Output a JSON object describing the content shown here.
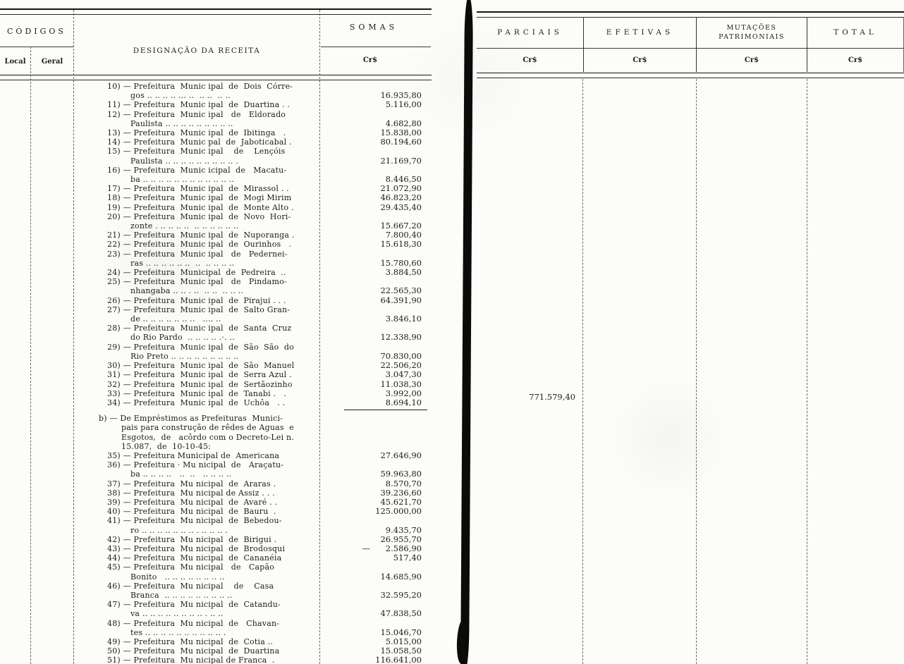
{
  "left_page": {
    "header": {
      "codigos": "CÓDIGOS",
      "local": "Local",
      "geral": "Geral",
      "designacao": "DESIGNAÇÃO DA RECEITA",
      "somas": "SOMAS",
      "currency": "Cr$"
    },
    "entries": [
      {
        "num": "10)",
        "lines": [
          "Prefeitura  Munic ipal  de  Dois  Córre-",
          "gos .. .. .. .. ... ..  .. ..  .. .."
        ],
        "amount": "16.935,80"
      },
      {
        "num": "11)",
        "lines": [
          "Prefeitura  Munic ipal  de  Duartina . ."
        ],
        "amount": "5.116,00"
      },
      {
        "num": "12)",
        "lines": [
          "Prefeitura  Munic ipal   de   Eldorado",
          "Paulista .. .. .. .. .. .. .. .. .."
        ],
        "amount": "4.682,80"
      },
      {
        "num": "13)",
        "lines": [
          "Prefeitura  Munic ipal  de  Ibitinga   ."
        ],
        "amount": "15.838,00"
      },
      {
        "num": "14)",
        "lines": [
          "Prefeitura  Munic pal  de  Jaboticabal ."
        ],
        "amount": "80.194,60"
      },
      {
        "num": "15)",
        "lines": [
          "Prefeitura  Munic ipal    de    Lençóis",
          "Paulista .. .. .. .. .. .. .. .. .. ."
        ],
        "amount": "21.169,70"
      },
      {
        "num": "16)",
        "lines": [
          "Prefeitura  Munic icipal  de   Macatu-",
          "ba .. .. .. .. .. .. .. .. .. .. .. .."
        ],
        "amount": "8.446,50"
      },
      {
        "num": "17)",
        "lines": [
          "Prefeitura  Munic ipal  de  Mirassol . ."
        ],
        "amount": "21.072,90"
      },
      {
        "num": "18)",
        "lines": [
          "Prefeitura  Munic ipal  de  Mogi Mirim"
        ],
        "amount": "46.823,20"
      },
      {
        "num": "19)",
        "lines": [
          "Prefeitura  Munic ipal  de  Monte Alto ."
        ],
        "amount": "29.435,40"
      },
      {
        "num": "20)",
        "lines": [
          "Prefeitura  Munic ipal  de  Novo  Hori-",
          "zonte . .. .. .. ..  .. .. .. .. .. .."
        ],
        "amount": "15.667,20"
      },
      {
        "num": "21)",
        "lines": [
          "Prefeitura  Munic ipal  de  Nuporanga ."
        ],
        "amount": "7.800,40"
      },
      {
        "num": "22)",
        "lines": [
          "Prefeitura  Munic ipal  de  Ourinhos   ."
        ],
        "amount": "15.618,30"
      },
      {
        "num": "23)",
        "lines": [
          "Prefeitura  Munic ipal   de   Pedernei-",
          "ras .. .. .. .. .. ..  ..  .. .. .. .."
        ],
        "amount": "15.780,60"
      },
      {
        "num": "24)",
        "lines": [
          "Prefeitura  Municipal  de  Pedreira  .."
        ],
        "amount": "3.884,50"
      },
      {
        "num": "25)",
        "lines": [
          "Prefeitura  Munic ipal   de   Pindamo-",
          "nhangaba .. .. . ..  .. ..  .. .. .."
        ],
        "amount": "22.565,30"
      },
      {
        "num": "26)",
        "lines": [
          "Prefeitura  Munic ipal  de  Pirajui . . ."
        ],
        "amount": "64.391,90"
      },
      {
        "num": "27)",
        "lines": [
          "Prefeitura  Munic ipal  de  Salto Gran-",
          "de .. .. .. .. .. .. ..   .... .."
        ],
        "amount": "3.846,10"
      },
      {
        "num": "28)",
        "lines": [
          "Prefeitura  Munic ipal  de  Santa  Cruz",
          "do Rio Pardo  .. .. .. .. .·. .."
        ],
        "amount": "12.338,90"
      },
      {
        "num": "29)",
        "lines": [
          "Prefeitura  Munic ipal  de  São  São  do",
          "Rio Preto .. .. .. .. .. .. .. .. .."
        ],
        "amount": "70.830,00"
      },
      {
        "num": "30)",
        "lines": [
          "Prefeitura  Munic ipal  de  São  Manuel"
        ],
        "amount": "22.506,20"
      },
      {
        "num": "31)",
        "lines": [
          "Prefeitura  Munic ipal  de  Serra Azul ."
        ],
        "amount": "3.047,30"
      },
      {
        "num": "32)",
        "lines": [
          "Prefeitura  Munic ipal  de  Sertãozinho"
        ],
        "amount": "11.038,30"
      },
      {
        "num": "33)",
        "lines": [
          "Prefeitura  Munic ipal  de  Tanabi .   ."
        ],
        "amount": "3.992,00"
      },
      {
        "num": "34)",
        "lines": [
          "Prefeitura  Munic ipal  de  Uchôa   . ."
        ],
        "amount": "8.694,10",
        "rule_after": true
      },
      {
        "num": "b)",
        "section": true,
        "lines": [
          "De Empréstimos as Prefeituras  Munici-",
          "pais para construção de rêdes de Aguas  e",
          "Esgotos,  de   acôrdo com o Decreto-Lei n.",
          "15.087,  de  10-10-45:"
        ],
        "amount": ""
      },
      {
        "num": "35)",
        "lines": [
          "Prefeitura Municipal de  Americana"
        ],
        "amount": "27.646,90"
      },
      {
        "num": "36)",
        "lines": [
          "Prefeitura · Mu nicipal  de   Araçatu-",
          "ba .. .. .. ..   ..  ..   .. .. .. .."
        ],
        "amount": "59.963,80"
      },
      {
        "num": "37)",
        "lines": [
          "Prefeitura  Mu nicipal  de  Araras ."
        ],
        "amount": "8.570,70"
      },
      {
        "num": "38)",
        "lines": [
          "Prefeitura  Mu nicipal de Assiz . . ."
        ],
        "amount": "39.236,60"
      },
      {
        "num": "39)",
        "lines": [
          "Prefeitura  Mu nicipal  de  Avaré . ."
        ],
        "amount": "45.621,70"
      },
      {
        "num": "40)",
        "lines": [
          "Prefeitura  Mu nicipal  de  Bauru  ."
        ],
        "amount": "125.000,00"
      },
      {
        "num": "41)",
        "lines": [
          "Prefeitura  Mu nicipal  de  Bebedou-",
          "ro .. .. .. .. .. .. .. . .. .. .. ."
        ],
        "amount": "9.435,70"
      },
      {
        "num": "42)",
        "lines": [
          "Prefeitura  Mu nicipal  de  Birigui ."
        ],
        "amount": "26.955,70"
      },
      {
        "num": "43)",
        "lines": [
          "Prefeitura  Mu nicipal  de  Brodosqui"
        ],
        "amount": "2.586,90",
        "amount_prefix": "—"
      },
      {
        "num": "44)",
        "lines": [
          "Prefeitura  Mu nicipal  de  Cananéia"
        ],
        "amount": "517,40"
      },
      {
        "num": "45)",
        "lines": [
          "Prefeitura  Mu nicipal   de   Capão",
          "Bonito   .. .. .. .. .. .. .. .."
        ],
        "amount": "14.685,90"
      },
      {
        "num": "46)",
        "lines": [
          "Prefeitura  Mu nicipal    de    Casa",
          "Branca  .. .. .. .. .. .. .. .. .."
        ],
        "amount": "32.595,20"
      },
      {
        "num": "47)",
        "lines": [
          "Prefeitura  Mu nicipal  de  Catandu-",
          "va .. .. .. .. .. .. .. .. . .. .."
        ],
        "amount": "47.838,50"
      },
      {
        "num": "48)",
        "lines": [
          "Prefeitura  Mu nicipal  de   Chavan-",
          "tes .. .. .. .. .. .. .. .. .. .. . "
        ],
        "amount": "15.046,70"
      },
      {
        "num": "49)",
        "lines": [
          "Prefeitura  Mu nicipal  de  Cotia .."
        ],
        "amount": "5.015,00"
      },
      {
        "num": "50)",
        "lines": [
          "Prefeitura  Mu nicipal  de  Duartina"
        ],
        "amount": "15.058,50"
      },
      {
        "num": "51)",
        "lines": [
          "Prefeitura  Mu nicipal de Franca  ."
        ],
        "amount": "116.641,00"
      }
    ]
  },
  "right_page": {
    "columns": [
      {
        "title": "PARCIAIS",
        "subtitle": "",
        "currency": "Cr$",
        "value": "771.579,40"
      },
      {
        "title": "EFETIVAS",
        "subtitle": "",
        "currency": "Cr$",
        "value": ""
      },
      {
        "title": "MUTAÇÕES",
        "subtitle": "PATRIMONIAIS",
        "currency": "Cr$",
        "value": ""
      },
      {
        "title": "TOTAL",
        "subtitle": "",
        "currency": "Cr$",
        "value": ""
      }
    ]
  },
  "colors": {
    "ink": "#1b1b1b",
    "paper": "#fcfcf9"
  }
}
